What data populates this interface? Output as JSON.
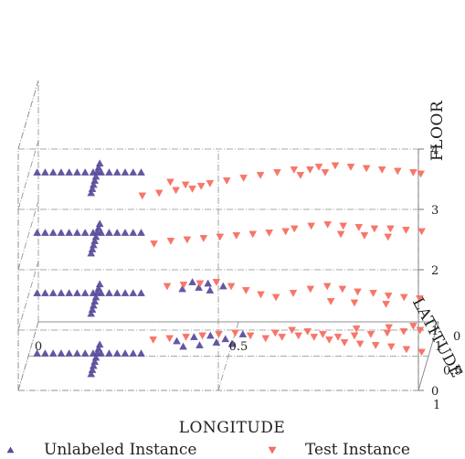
{
  "chart_data": {
    "type": "scatter",
    "projection": "3d",
    "title": "",
    "xlabel": "LONGITUDE",
    "ylabel": "LATITUDE",
    "zlabel": "FLOOR",
    "xlim": [
      0,
      1
    ],
    "ylim": [
      0,
      1
    ],
    "zlim": [
      0,
      4
    ],
    "x_ticks": [
      "0",
      "0.5",
      "1"
    ],
    "y_ticks": [
      "0",
      "0.5",
      "1"
    ],
    "z_ticks": [
      "0",
      "1",
      "2",
      "3",
      "4"
    ],
    "grid": true,
    "legend_position": "bottom",
    "series": [
      {
        "name": "Unlabeled Instance",
        "marker": "triangle-up",
        "color": "#5a4f9e",
        "points": [
          [
            0.02,
            0.46,
            3
          ],
          [
            0.04,
            0.46,
            3
          ],
          [
            0.06,
            0.46,
            3
          ],
          [
            0.08,
            0.46,
            3
          ],
          [
            0.1,
            0.46,
            3
          ],
          [
            0.12,
            0.46,
            3
          ],
          [
            0.14,
            0.46,
            3
          ],
          [
            0.16,
            0.46,
            3
          ],
          [
            0.18,
            0.46,
            3
          ],
          [
            0.2,
            0.46,
            3
          ],
          [
            0.22,
            0.46,
            3
          ],
          [
            0.24,
            0.46,
            3
          ],
          [
            0.26,
            0.46,
            3
          ],
          [
            0.28,
            0.46,
            3
          ],
          [
            0.17,
            0.33,
            3
          ],
          [
            0.17,
            0.39,
            3
          ],
          [
            0.17,
            0.45,
            3
          ],
          [
            0.17,
            0.52,
            3
          ],
          [
            0.17,
            0.58,
            3
          ],
          [
            0.17,
            0.64,
            3
          ],
          [
            0.17,
            0.7,
            3
          ],
          [
            0.17,
            0.76,
            3
          ],
          [
            0.02,
            0.46,
            2
          ],
          [
            0.04,
            0.46,
            2
          ],
          [
            0.06,
            0.46,
            2
          ],
          [
            0.08,
            0.46,
            2
          ],
          [
            0.1,
            0.46,
            2
          ],
          [
            0.12,
            0.46,
            2
          ],
          [
            0.14,
            0.46,
            2
          ],
          [
            0.16,
            0.46,
            2
          ],
          [
            0.18,
            0.46,
            2
          ],
          [
            0.2,
            0.46,
            2
          ],
          [
            0.22,
            0.46,
            2
          ],
          [
            0.24,
            0.46,
            2
          ],
          [
            0.26,
            0.46,
            2
          ],
          [
            0.28,
            0.46,
            2
          ],
          [
            0.17,
            0.33,
            2
          ],
          [
            0.17,
            0.39,
            2
          ],
          [
            0.17,
            0.45,
            2
          ],
          [
            0.17,
            0.52,
            2
          ],
          [
            0.17,
            0.58,
            2
          ],
          [
            0.17,
            0.64,
            2
          ],
          [
            0.17,
            0.7,
            2
          ],
          [
            0.17,
            0.76,
            2
          ],
          [
            0.02,
            0.46,
            1
          ],
          [
            0.04,
            0.46,
            1
          ],
          [
            0.06,
            0.46,
            1
          ],
          [
            0.08,
            0.46,
            1
          ],
          [
            0.1,
            0.46,
            1
          ],
          [
            0.12,
            0.46,
            1
          ],
          [
            0.14,
            0.46,
            1
          ],
          [
            0.16,
            0.46,
            1
          ],
          [
            0.18,
            0.46,
            1
          ],
          [
            0.2,
            0.46,
            1
          ],
          [
            0.22,
            0.46,
            1
          ],
          [
            0.24,
            0.46,
            1
          ],
          [
            0.26,
            0.46,
            1
          ],
          [
            0.28,
            0.46,
            1
          ],
          [
            0.17,
            0.33,
            1
          ],
          [
            0.17,
            0.39,
            1
          ],
          [
            0.17,
            0.45,
            1
          ],
          [
            0.17,
            0.52,
            1
          ],
          [
            0.17,
            0.58,
            1
          ],
          [
            0.17,
            0.64,
            1
          ],
          [
            0.17,
            0.7,
            1
          ],
          [
            0.17,
            0.76,
            1
          ],
          [
            0.02,
            0.46,
            0
          ],
          [
            0.04,
            0.46,
            0
          ],
          [
            0.06,
            0.46,
            0
          ],
          [
            0.08,
            0.46,
            0
          ],
          [
            0.1,
            0.46,
            0
          ],
          [
            0.12,
            0.46,
            0
          ],
          [
            0.14,
            0.46,
            0
          ],
          [
            0.16,
            0.46,
            0
          ],
          [
            0.18,
            0.46,
            0
          ],
          [
            0.2,
            0.46,
            0
          ],
          [
            0.22,
            0.46,
            0
          ],
          [
            0.24,
            0.46,
            0
          ],
          [
            0.26,
            0.46,
            0
          ],
          [
            0.28,
            0.46,
            0
          ],
          [
            0.17,
            0.33,
            0
          ],
          [
            0.17,
            0.39,
            0
          ],
          [
            0.17,
            0.45,
            0
          ],
          [
            0.17,
            0.52,
            0
          ],
          [
            0.17,
            0.58,
            0
          ],
          [
            0.17,
            0.64,
            0
          ],
          [
            0.17,
            0.7,
            0
          ],
          [
            0.17,
            0.76,
            0
          ],
          [
            0.38,
            0.4,
            1
          ],
          [
            0.42,
            0.38,
            1
          ],
          [
            0.45,
            0.42,
            1
          ],
          [
            0.48,
            0.36,
            1
          ],
          [
            0.4,
            0.3,
            1
          ],
          [
            0.44,
            0.32,
            1
          ],
          [
            0.38,
            0.36,
            0
          ],
          [
            0.42,
            0.34,
            0
          ],
          [
            0.46,
            0.3,
            0
          ],
          [
            0.4,
            0.22,
            0
          ],
          [
            0.44,
            0.2,
            0
          ],
          [
            0.48,
            0.25,
            0
          ],
          [
            0.52,
            0.18,
            0
          ],
          [
            0.36,
            0.28,
            0
          ],
          [
            0.5,
            0.32,
            0
          ]
        ]
      },
      {
        "name": "Test Instance",
        "marker": "triangle-down",
        "color": "#f86e62",
        "points": [
          [
            0.3,
            0.8,
            3
          ],
          [
            0.34,
            0.76,
            3
          ],
          [
            0.38,
            0.72,
            3
          ],
          [
            0.42,
            0.7,
            3
          ],
          [
            0.44,
            0.66,
            3
          ],
          [
            0.4,
            0.64,
            3
          ],
          [
            0.36,
            0.6,
            3
          ],
          [
            0.46,
            0.62,
            3
          ],
          [
            0.5,
            0.58,
            3
          ],
          [
            0.54,
            0.54,
            3
          ],
          [
            0.58,
            0.5,
            3
          ],
          [
            0.62,
            0.46,
            3
          ],
          [
            0.66,
            0.42,
            3
          ],
          [
            0.7,
            0.42,
            3
          ],
          [
            0.72,
            0.38,
            3
          ],
          [
            0.76,
            0.36,
            3
          ],
          [
            0.8,
            0.38,
            3
          ],
          [
            0.84,
            0.4,
            3
          ],
          [
            0.88,
            0.42,
            3
          ],
          [
            0.92,
            0.44,
            3
          ],
          [
            0.96,
            0.46,
            3
          ],
          [
            0.98,
            0.48,
            3
          ],
          [
            0.74,
            0.46,
            3
          ],
          [
            0.68,
            0.5,
            3
          ],
          [
            0.32,
            0.62,
            2
          ],
          [
            0.36,
            0.58,
            2
          ],
          [
            0.4,
            0.56,
            2
          ],
          [
            0.44,
            0.54,
            2
          ],
          [
            0.48,
            0.52,
            2
          ],
          [
            0.52,
            0.5,
            2
          ],
          [
            0.56,
            0.48,
            2
          ],
          [
            0.6,
            0.46,
            2
          ],
          [
            0.64,
            0.44,
            2
          ],
          [
            0.66,
            0.4,
            2
          ],
          [
            0.7,
            0.36,
            2
          ],
          [
            0.74,
            0.34,
            2
          ],
          [
            0.78,
            0.36,
            2
          ],
          [
            0.82,
            0.38,
            2
          ],
          [
            0.86,
            0.4,
            2
          ],
          [
            0.9,
            0.4,
            2
          ],
          [
            0.94,
            0.42,
            2
          ],
          [
            0.98,
            0.44,
            2
          ],
          [
            0.78,
            0.48,
            2
          ],
          [
            0.84,
            0.5,
            2
          ],
          [
            0.9,
            0.52,
            2
          ],
          [
            0.34,
            0.36,
            1
          ],
          [
            0.38,
            0.34,
            1
          ],
          [
            0.42,
            0.32,
            1
          ],
          [
            0.46,
            0.3,
            1
          ],
          [
            0.5,
            0.36,
            1
          ],
          [
            0.54,
            0.42,
            1
          ],
          [
            0.58,
            0.48,
            1
          ],
          [
            0.62,
            0.52,
            1
          ],
          [
            0.66,
            0.46,
            1
          ],
          [
            0.7,
            0.4,
            1
          ],
          [
            0.74,
            0.36,
            1
          ],
          [
            0.78,
            0.4,
            1
          ],
          [
            0.82,
            0.44,
            1
          ],
          [
            0.86,
            0.46,
            1
          ],
          [
            0.9,
            0.5,
            1
          ],
          [
            0.94,
            0.52,
            1
          ],
          [
            0.98,
            0.54,
            1
          ],
          [
            0.76,
            0.58,
            1
          ],
          [
            0.82,
            0.6,
            1
          ],
          [
            0.9,
            0.62,
            1
          ],
          [
            0.3,
            0.26,
            0
          ],
          [
            0.34,
            0.24,
            0
          ],
          [
            0.38,
            0.22,
            0
          ],
          [
            0.42,
            0.2,
            0
          ],
          [
            0.46,
            0.18,
            0
          ],
          [
            0.5,
            0.16,
            0
          ],
          [
            0.54,
            0.2,
            0
          ],
          [
            0.58,
            0.24,
            0
          ],
          [
            0.62,
            0.22,
            0
          ],
          [
            0.66,
            0.2,
            0
          ],
          [
            0.7,
            0.22,
            0
          ],
          [
            0.74,
            0.26,
            0
          ],
          [
            0.78,
            0.3,
            0
          ],
          [
            0.82,
            0.32,
            0
          ],
          [
            0.86,
            0.34,
            0
          ],
          [
            0.9,
            0.36,
            0
          ],
          [
            0.94,
            0.4,
            0
          ],
          [
            0.98,
            0.44,
            0
          ],
          [
            0.6,
            0.16,
            0
          ],
          [
            0.64,
            0.12,
            0
          ],
          [
            0.68,
            0.14,
            0
          ],
          [
            0.72,
            0.18,
            0
          ],
          [
            0.76,
            0.22,
            0
          ],
          [
            0.8,
            0.2,
            0
          ],
          [
            0.84,
            0.18,
            0
          ],
          [
            0.88,
            0.16,
            0
          ],
          [
            0.92,
            0.14,
            0
          ],
          [
            0.96,
            0.12,
            0
          ],
          [
            0.8,
            0.1,
            0
          ],
          [
            0.88,
            0.08,
            0
          ],
          [
            0.94,
            0.06,
            0
          ]
        ]
      }
    ]
  }
}
